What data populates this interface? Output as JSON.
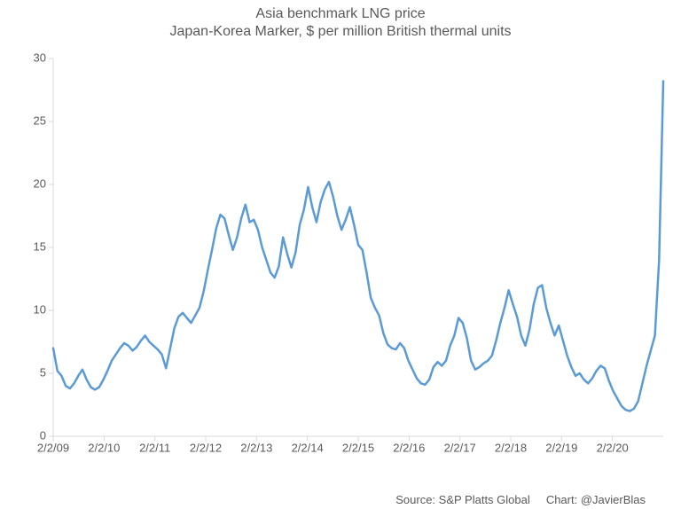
{
  "chart": {
    "type": "line",
    "title_line1": "Asia benchmark LNG price",
    "title_line2": "Japan-Korea Marker, $ per million British thermal units",
    "title_fontsize": 16,
    "title_color": "#595959",
    "background_color": "#ffffff",
    "axis_color": "#d9d9d9",
    "label_color": "#595959",
    "label_fontsize": 13,
    "ylim": [
      0,
      30
    ],
    "ytick_step": 5,
    "yticks": [
      0,
      5,
      10,
      15,
      20,
      25,
      30
    ],
    "xticks": [
      "2/2/09",
      "2/2/10",
      "2/2/11",
      "2/2/12",
      "2/2/13",
      "2/2/14",
      "2/2/15",
      "2/2/16",
      "2/2/17",
      "2/2/18",
      "2/2/19",
      "2/2/20"
    ],
    "x_domain_count": 12.0,
    "line_color": "#5b9bd5",
    "line_width": 2.5,
    "series": [
      7.0,
      5.2,
      4.8,
      4.0,
      3.8,
      4.2,
      4.8,
      5.3,
      4.5,
      3.9,
      3.7,
      3.9,
      4.5,
      5.2,
      6.0,
      6.5,
      7.0,
      7.4,
      7.2,
      6.8,
      7.1,
      7.6,
      8.0,
      7.5,
      7.2,
      6.9,
      6.5,
      5.4,
      7.0,
      8.6,
      9.5,
      9.8,
      9.4,
      9.0,
      9.6,
      10.2,
      11.5,
      13.2,
      14.8,
      16.5,
      17.6,
      17.3,
      16.0,
      14.8,
      15.8,
      17.3,
      18.4,
      17.0,
      17.2,
      16.4,
      15.0,
      14.0,
      13.0,
      12.6,
      13.5,
      15.8,
      14.5,
      13.4,
      14.6,
      16.8,
      18.0,
      19.8,
      18.2,
      17.0,
      18.6,
      19.6,
      20.2,
      19.0,
      17.5,
      16.4,
      17.2,
      18.2,
      16.8,
      15.2,
      14.8,
      13.0,
      11.0,
      10.2,
      9.6,
      8.2,
      7.3,
      7.0,
      6.9,
      7.4,
      7.0,
      6.0,
      5.3,
      4.6,
      4.2,
      4.1,
      4.5,
      5.5,
      5.9,
      5.6,
      6.0,
      7.2,
      8.0,
      9.4,
      9.0,
      7.8,
      6.0,
      5.3,
      5.5,
      5.8,
      6.0,
      6.4,
      7.6,
      9.0,
      10.2,
      11.6,
      10.5,
      9.5,
      8.0,
      7.2,
      8.5,
      10.5,
      11.8,
      12.0,
      10.2,
      9.0,
      8.0,
      8.8,
      7.6,
      6.4,
      5.5,
      4.8,
      5.0,
      4.5,
      4.2,
      4.6,
      5.2,
      5.6,
      5.4,
      4.4,
      3.6,
      3.0,
      2.4,
      2.1,
      2.0,
      2.2,
      2.8,
      4.2,
      5.6,
      6.8,
      8.0,
      14.0,
      28.2
    ],
    "source_label": "Source: S&P Platts Global",
    "chart_credit": "Chart: @JavierBlas"
  }
}
